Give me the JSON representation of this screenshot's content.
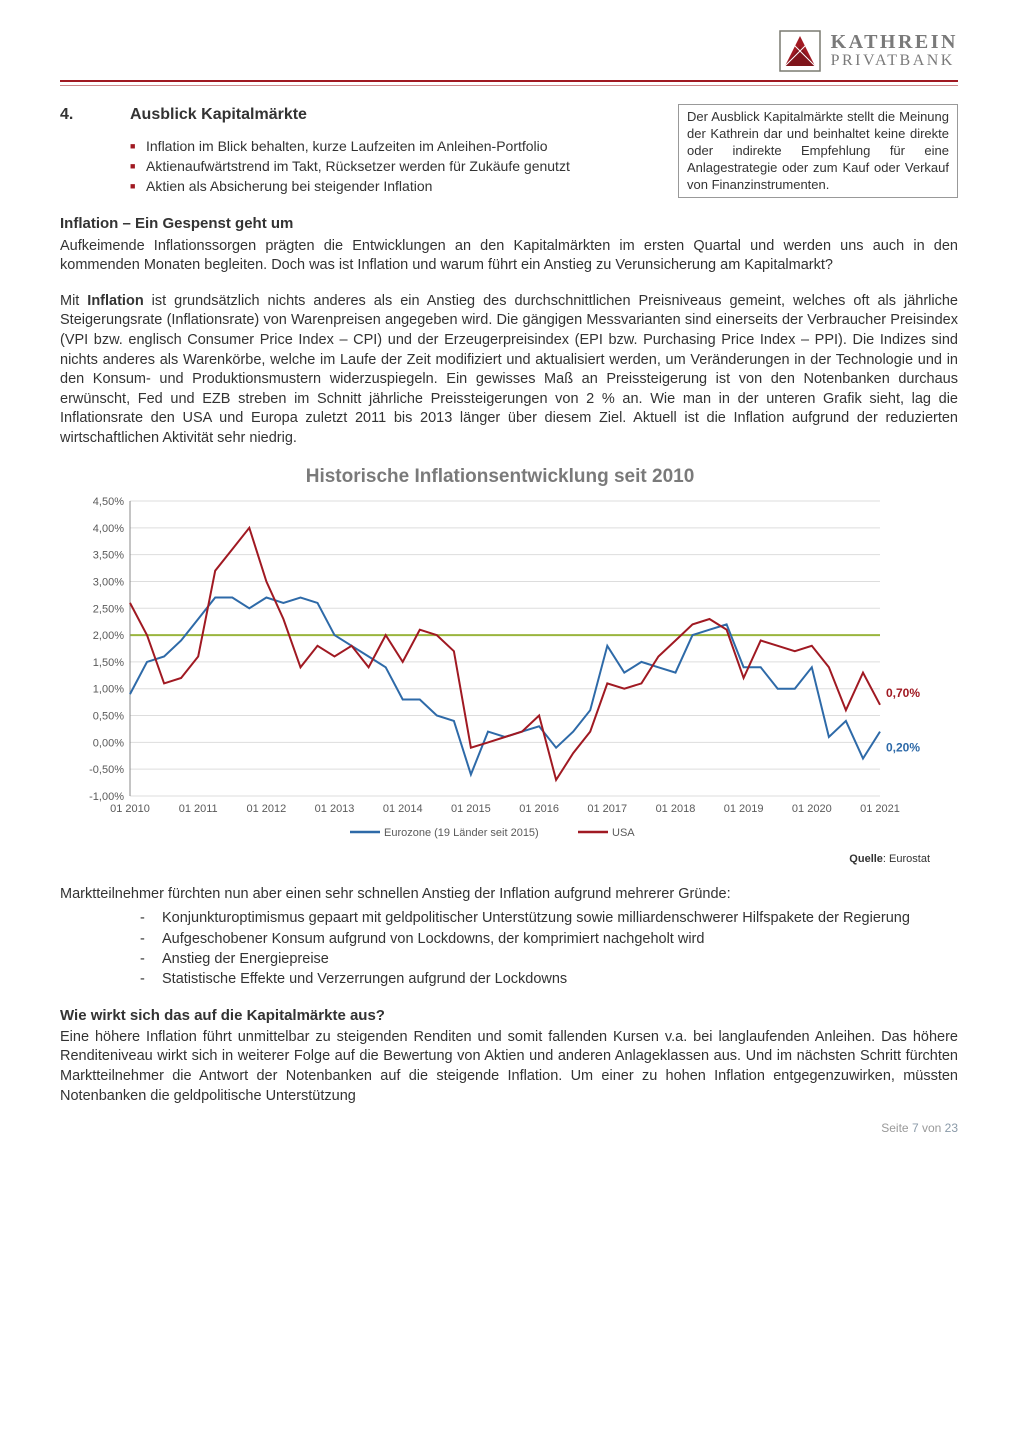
{
  "logo": {
    "line1": "KATHREIN",
    "line2": "PRIVATBANK",
    "mark_color": "#a01922",
    "border_color": "#7a7a70"
  },
  "hr_color": "#a01922",
  "section": {
    "num": "4.",
    "title": "Ausblick Kapitalmärkte",
    "bullets": [
      "Inflation im Blick behalten, kurze Laufzeiten im Anleihen-Portfolio",
      "Aktienaufwärtstrend im Takt, Rücksetzer werden für Zukäufe genutzt",
      "Aktien als Absicherung bei steigender Inflation"
    ]
  },
  "disclaimer": "Der Ausblick Kapitalmärkte stellt die Meinung der Kathrein dar und beinhaltet keine direkte oder indirekte Empfehlung für eine Anlagestrategie oder zum Kauf oder Verkauf von Finanzinstrumenten.",
  "block1": {
    "heading": "Inflation – Ein Gespenst geht um",
    "p1": "Aufkeimende Inflationssorgen prägten die Entwicklungen an den Kapitalmärkten im ersten Quartal und werden uns auch in den kommenden Monaten begleiten. Doch was ist Inflation und warum führt ein Anstieg zu Verunsicherung am Kapitalmarkt?",
    "p2a": "Mit ",
    "p2b": "Inflation",
    "p2c": " ist grundsätzlich nichts anderes als ein Anstieg des durchschnittlichen Preisniveaus gemeint, welches oft als jährliche Steigerungsrate (Inflationsrate) von Warenpreisen angegeben wird. Die gängigen Messvarianten sind einerseits der Verbraucher Preisindex (VPI bzw. englisch Consumer Price Index – CPI) und der Erzeugerpreisindex (EPI bzw. Purchasing Price Index – PPI). Die Indizes sind nichts anderes als Warenkörbe, welche im Laufe der Zeit modifiziert und aktualisiert werden, um Veränderungen in der Technologie und in den Konsum- und Produktionsmustern widerzuspiegeln. Ein gewisses Maß an Preissteigerung ist von den Notenbanken durchaus erwünscht, Fed und EZB streben im Schnitt jährliche Preissteigerungen von 2 % an. Wie man in der unteren Grafik sieht, lag die Inflationsrate den USA und Europa zuletzt 2011 bis 2013 länger über diesem Ziel. Aktuell ist die Inflation aufgrund der reduzierten wirtschaftlichen Aktivität sehr niedrig."
  },
  "chart": {
    "title": "Historische Inflationsentwicklung seit 2010",
    "source_label": "Quelle",
    "source_val": ": Eurostat",
    "ylim": [
      -1.0,
      4.5
    ],
    "ytick_step": 0.5,
    "yticks_labels": [
      "-1,00%",
      "-0,50%",
      "0,00%",
      "0,50%",
      "1,00%",
      "1,50%",
      "2,00%",
      "2,50%",
      "3,00%",
      "3,50%",
      "4,00%",
      "4,50%"
    ],
    "x_labels": [
      "01 2010",
      "01 2011",
      "01 2012",
      "01 2013",
      "01 2014",
      "01 2015",
      "01 2016",
      "01 2017",
      "01 2018",
      "01 2019",
      "01 2020",
      "01 2021"
    ],
    "target_line": 2.0,
    "target_color": "#9ab53e",
    "grid_color": "#dddddd",
    "axis_color": "#888888",
    "tick_font_color": "#5a5a5a",
    "series": [
      {
        "name": "Eurozone (19 Länder seit 2015)",
        "color": "#2e6aa8",
        "end_label": "0,20%",
        "end_label_color": "#2e6aa8",
        "values": [
          0.9,
          1.5,
          1.6,
          1.9,
          2.3,
          2.7,
          2.7,
          2.5,
          2.7,
          2.6,
          2.7,
          2.6,
          2.0,
          1.8,
          1.6,
          1.4,
          0.8,
          0.8,
          0.5,
          0.4,
          -0.6,
          0.2,
          0.1,
          0.2,
          0.3,
          -0.1,
          0.2,
          0.6,
          1.8,
          1.3,
          1.5,
          1.4,
          1.3,
          2.0,
          2.1,
          2.2,
          1.4,
          1.4,
          1.0,
          1.0,
          1.4,
          0.1,
          0.4,
          -0.3,
          0.2
        ]
      },
      {
        "name": "USA",
        "color": "#a01922",
        "end_label": "0,70%",
        "end_label_color": "#a01922",
        "values": [
          2.6,
          2.0,
          1.1,
          1.2,
          1.6,
          3.2,
          3.6,
          4.0,
          3.0,
          2.3,
          1.4,
          1.8,
          1.6,
          1.8,
          1.4,
          2.0,
          1.5,
          2.1,
          2.0,
          1.7,
          -0.1,
          0.0,
          0.1,
          0.2,
          0.5,
          -0.7,
          -0.2,
          0.2,
          1.1,
          1.0,
          1.1,
          1.6,
          1.9,
          2.2,
          2.3,
          2.1,
          1.2,
          1.9,
          1.8,
          1.7,
          1.8,
          1.4,
          0.6,
          1.3,
          0.7
        ]
      }
    ]
  },
  "mid": {
    "lead": "Marktteilnehmer fürchten nun aber einen sehr schnellen Anstieg der Inflation aufgrund mehrerer Gründe:",
    "items": [
      "Konjunkturoptimismus gepaart mit geldpolitischer Unterstützung sowie milliardenschwerer Hilfspakete der Regierung",
      "Aufgeschobener Konsum aufgrund von Lockdowns, der komprimiert nachgeholt wird",
      "Anstieg der Energiepreise",
      "Statistische Effekte und Verzerrungen aufgrund der Lockdowns"
    ]
  },
  "block2": {
    "heading": "Wie wirkt sich das auf die Kapitalmärkte aus?",
    "p": "Eine höhere Inflation führt unmittelbar zu steigenden Renditen und somit fallenden Kursen v.a. bei langlaufenden Anleihen. Das höhere Renditeniveau wirkt sich in weiterer Folge auf die Bewertung von Aktien und anderen Anlageklassen aus. Und im nächsten Schritt fürchten Marktteilnehmer die Antwort der Notenbanken auf die steigende Inflation. Um einer zu hohen Inflation entgegenzuwirken, müssten Notenbanken die geldpolitische Unterstützung"
  },
  "footer": {
    "pre": "Seite ",
    "cur": "7",
    "mid": " von ",
    "tot": "23"
  }
}
